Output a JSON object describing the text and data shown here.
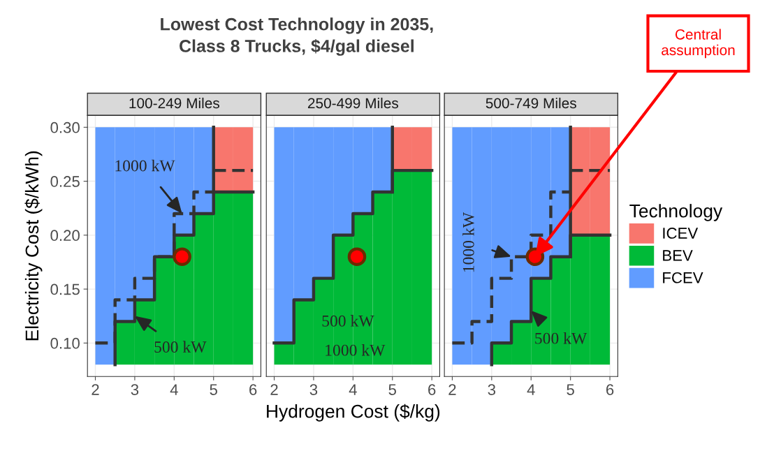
{
  "chart_data": [
    {
      "type": "bar",
      "title": "Lowest Cost Technology in 2035,\nClass 8 Trucks, $4/gal diesel",
      "subtitle": "100-249 Miles",
      "ylabel": "Electricity Cost ($/kWh)",
      "x": [
        2.25,
        2.75,
        3.25,
        3.75,
        4.25,
        4.75,
        5.25,
        5.75
      ],
      "series": [
        {
          "color": "#f8766d",
          "base": [
            null,
            null,
            null,
            null,
            null,
            null,
            0.24,
            0.24
          ],
          "values": [
            null,
            null,
            null,
            null,
            null,
            null,
            0.06,
            0.06
          ]
        },
        {
          "color": "#00ba38",
          "base": [
            null,
            0.08,
            0.08,
            0.08,
            0.08,
            0.08,
            0.08,
            0.08
          ],
          "values": [
            null,
            0.04,
            0.06,
            0.1,
            0.12,
            0.14,
            0.16,
            0.16
          ]
        },
        {
          "color": "#619cff",
          "base": [
            0.08,
            0.12,
            0.14,
            0.18,
            0.2,
            0.22,
            null,
            null
          ],
          "values": [
            0.22,
            0.18,
            0.16,
            0.12,
            0.1,
            0.08,
            null,
            null
          ]
        },
        {
          "type": "step",
          "color": "#333333",
          "line_style": "solid",
          "x": [
            2.5,
            2.5,
            3,
            3.5,
            4,
            4.5,
            5,
            6
          ],
          "values": [
            0.08,
            0.12,
            0.14,
            0.18,
            0.2,
            0.22,
            0.24,
            0.24
          ]
        },
        {
          "type": "step",
          "color": "#333333",
          "line_style": "solid",
          "x": [
            5,
            5
          ],
          "values": [
            0.24,
            0.3
          ]
        },
        {
          "type": "step",
          "color": "#333333",
          "line_style": "dashed",
          "x": [
            2,
            2.5,
            3,
            3.5,
            4,
            4.5,
            5
          ],
          "values": [
            0.1,
            0.14,
            0.16,
            0.18,
            0.22,
            0.24,
            0.24
          ]
        },
        {
          "type": "step",
          "color": "#333333",
          "line_style": "dashed",
          "x": [
            5,
            6
          ],
          "values": [
            0.26,
            0.26
          ]
        },
        {
          "type": "scatter",
          "color": "#ff0000",
          "marker": "circle",
          "x": [
            4.2
          ],
          "values": [
            0.18
          ]
        }
      ],
      "xlim": [
        1.8,
        6.2
      ],
      "ylim": [
        0.069,
        0.311
      ],
      "xticks": [
        2,
        3,
        4,
        5,
        6
      ],
      "yticks": [
        {
          "value": 0.1,
          "label": "0.10"
        },
        {
          "value": 0.15,
          "label": "0.15"
        },
        {
          "value": 0.2,
          "label": "0.20"
        },
        {
          "value": 0.25,
          "label": "0.25"
        },
        {
          "value": 0.3,
          "label": "0.30"
        }
      ],
      "grid": true,
      "annotations": [
        {
          "text": "1000 kW",
          "x": 4.2,
          "y": 0.22
        },
        {
          "text": "500 kW",
          "x": 3.0,
          "y": 0.125
        }
      ]
    },
    {
      "type": "bar",
      "subtitle": "250-499 Miles",
      "xlabel": "Hydrogen Cost ($/kg)",
      "x": [
        2.25,
        2.75,
        3.25,
        3.75,
        4.25,
        4.75,
        5.25,
        5.75
      ],
      "series": [
        {
          "color": "#f8766d",
          "base": [
            null,
            null,
            null,
            null,
            null,
            null,
            0.26,
            0.26
          ],
          "values": [
            null,
            null,
            null,
            null,
            null,
            null,
            0.04,
            0.04
          ]
        },
        {
          "color": "#00ba38",
          "base": [
            0.08,
            0.08,
            0.08,
            0.08,
            0.08,
            0.08,
            0.08,
            0.08
          ],
          "values": [
            0.02,
            0.06,
            0.08,
            0.12,
            0.14,
            0.16,
            0.18,
            0.18
          ]
        },
        {
          "color": "#619cff",
          "base": [
            0.1,
            0.14,
            0.16,
            0.2,
            0.22,
            0.24,
            null,
            null
          ],
          "values": [
            0.2,
            0.16,
            0.14,
            0.1,
            0.08,
            0.06,
            null,
            null
          ]
        },
        {
          "type": "step",
          "color": "#333333",
          "line_style": "solid",
          "x": [
            2,
            2.5,
            3,
            3.5,
            4,
            4.5,
            5,
            6
          ],
          "values": [
            0.1,
            0.14,
            0.16,
            0.2,
            0.22,
            0.24,
            0.26,
            0.26
          ]
        },
        {
          "type": "step",
          "color": "#333333",
          "line_style": "solid",
          "x": [
            5,
            5
          ],
          "values": [
            0.24,
            0.3
          ]
        },
        {
          "type": "scatter",
          "color": "#ff0000",
          "marker": "circle",
          "x": [
            4.1
          ],
          "values": [
            0.18
          ]
        }
      ],
      "xlim": [
        1.8,
        6.2
      ],
      "ylim": [
        0.069,
        0.311
      ],
      "xticks": [
        2,
        3,
        4,
        5,
        6
      ],
      "yticks": [
        {
          "value": 0.1,
          "label": null
        },
        {
          "value": 0.15,
          "label": null
        },
        {
          "value": 0.2,
          "label": null
        },
        {
          "value": 0.25,
          "label": null
        },
        {
          "value": 0.3,
          "label": null
        }
      ],
      "grid": true,
      "tick_labels": "x",
      "annotations": [
        "500 kW",
        "1000 kW"
      ]
    },
    {
      "type": "bar",
      "subtitle": "500-749 Miles",
      "legend_title": "Technology",
      "legend": "right",
      "x": [
        2.25,
        2.75,
        3.25,
        3.75,
        4.25,
        4.75,
        5.25,
        5.75
      ],
      "series": [
        {
          "name": "ICEV",
          "color": "#f8766d",
          "base": [
            null,
            null,
            null,
            null,
            null,
            null,
            0.2,
            0.2
          ],
          "values": [
            null,
            null,
            null,
            null,
            null,
            null,
            0.1,
            0.1
          ]
        },
        {
          "name": "BEV",
          "color": "#00ba38",
          "base": [
            null,
            null,
            0.08,
            0.08,
            0.08,
            0.08,
            0.08,
            0.08
          ],
          "values": [
            null,
            null,
            0.02,
            0.04,
            0.08,
            0.1,
            0.12,
            0.12
          ]
        },
        {
          "name": "FCEV",
          "color": "#619cff",
          "base": [
            0.08,
            0.08,
            0.1,
            0.12,
            0.16,
            0.18,
            null,
            null
          ],
          "values": [
            0.22,
            0.22,
            0.2,
            0.18,
            0.14,
            0.12,
            null,
            null
          ]
        },
        {
          "type": "step",
          "color": "#333333",
          "line_style": "solid",
          "x": [
            3,
            3,
            3.5,
            4,
            4.5,
            5,
            6
          ],
          "values": [
            0.08,
            0.1,
            0.12,
            0.16,
            0.18,
            0.2,
            0.2
          ]
        },
        {
          "type": "step",
          "color": "#333333",
          "line_style": "solid",
          "x": [
            5,
            5
          ],
          "values": [
            0.18,
            0.3
          ]
        },
        {
          "type": "step",
          "color": "#333333",
          "line_style": "dashed",
          "x": [
            2,
            2.5,
            3,
            3.5,
            4,
            4.5,
            5
          ],
          "values": [
            0.1,
            0.12,
            0.16,
            0.18,
            0.2,
            0.24,
            0.24
          ]
        },
        {
          "type": "step",
          "color": "#333333",
          "line_style": "dashed",
          "x": [
            5,
            6
          ],
          "values": [
            0.26,
            0.26
          ]
        },
        {
          "type": "scatter",
          "color": "#ff0000",
          "marker": "circle",
          "x": [
            4.1
          ],
          "values": [
            0.18
          ]
        }
      ],
      "xlim": [
        1.8,
        6.2
      ],
      "ylim": [
        0.069,
        0.311
      ],
      "xticks": [
        2,
        3,
        4,
        5,
        6
      ],
      "yticks": [
        {
          "value": 0.1,
          "label": null
        },
        {
          "value": 0.15,
          "label": null
        },
        {
          "value": 0.2,
          "label": null
        },
        {
          "value": 0.25,
          "label": null
        },
        {
          "value": 0.3,
          "label": null
        }
      ],
      "grid": true,
      "tick_labels": "x",
      "annotations": [
        {
          "text": "1000 kW",
          "x": 3.5,
          "y": 0.18
        },
        {
          "text": "500 kW",
          "x": 4.0,
          "y": 0.13
        },
        {
          "text": "Central assumption",
          "x": 4.1,
          "y": 0.18
        }
      ]
    }
  ]
}
